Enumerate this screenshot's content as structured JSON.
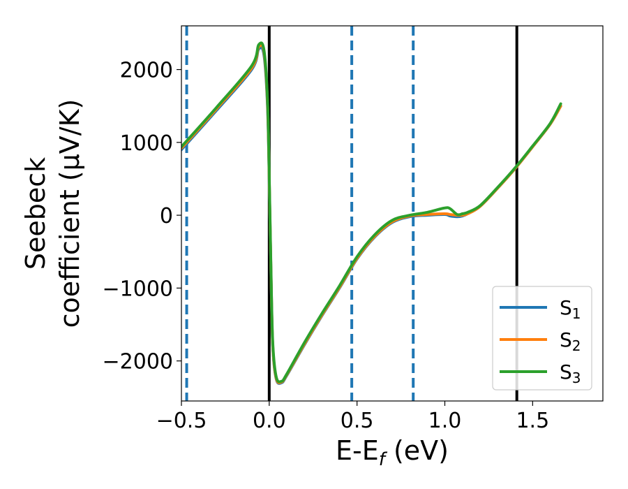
{
  "chart_data": {
    "type": "line",
    "xlabel": "E-E",
    "xlabel_sub": "f",
    "xlabel_unit": " (eV)",
    "ylabel_line1": "Seebeck",
    "ylabel_line2": "coefficient  (μV/K)",
    "xlim": [
      -0.5,
      1.9
    ],
    "ylim": [
      -2550,
      2600
    ],
    "xticks": [
      -0.5,
      0.0,
      0.5,
      1.0,
      1.5
    ],
    "xtick_labels": [
      "−0.5",
      "0.0",
      "0.5",
      "1.0",
      "1.5"
    ],
    "yticks": [
      2000,
      1000,
      0,
      -1000,
      -2000
    ],
    "ytick_labels": [
      "2000",
      "1000",
      "0",
      "−1000",
      "−2000"
    ],
    "vlines_solid": [
      0.0,
      1.41
    ],
    "vlines_dashed": [
      -0.47,
      0.47,
      0.82
    ],
    "vline_dashed_color": "#1f77b4",
    "vline_solid_color": "#000000",
    "grid": false,
    "legend_position": "lower-right",
    "series": [
      {
        "name": "S",
        "sub": "1",
        "color": "#1f77b4",
        "x": [
          -0.5,
          -0.3,
          -0.1,
          -0.06,
          -0.03,
          -0.01,
          0.0,
          0.01,
          0.02,
          0.04,
          0.07,
          0.1,
          0.2,
          0.3,
          0.4,
          0.5,
          0.6,
          0.7,
          0.8,
          0.9,
          1.0,
          1.03,
          1.07,
          1.1,
          1.13,
          1.2,
          1.3,
          1.4,
          1.5,
          1.6,
          1.66
        ],
        "y": [
          900,
          1440,
          2000,
          2280,
          2200,
          1500,
          500,
          -800,
          -1800,
          -2250,
          -2300,
          -2200,
          -1780,
          -1380,
          -1000,
          -600,
          -300,
          -100,
          -20,
          0,
          10,
          -10,
          -20,
          -10,
          20,
          120,
          370,
          640,
          940,
          1250,
          1500
        ]
      },
      {
        "name": "S",
        "sub": "2",
        "color": "#ff7f0e",
        "x": [
          -0.5,
          -0.3,
          -0.1,
          -0.06,
          -0.03,
          -0.01,
          0.0,
          0.01,
          0.02,
          0.04,
          0.07,
          0.1,
          0.2,
          0.3,
          0.4,
          0.5,
          0.6,
          0.7,
          0.8,
          0.9,
          1.0,
          1.03,
          1.07,
          1.1,
          1.13,
          1.2,
          1.3,
          1.4,
          1.5,
          1.6,
          1.66
        ],
        "y": [
          920,
          1460,
          2020,
          2310,
          2240,
          1550,
          520,
          -780,
          -1780,
          -2240,
          -2290,
          -2190,
          -1770,
          -1370,
          -990,
          -590,
          -290,
          -90,
          -10,
          10,
          20,
          10,
          0,
          0,
          20,
          120,
          370,
          640,
          940,
          1250,
          1500
        ]
      },
      {
        "name": "S",
        "sub": "3",
        "color": "#2ca02c",
        "x": [
          -0.5,
          -0.3,
          -0.1,
          -0.06,
          -0.03,
          -0.01,
          0.0,
          0.01,
          0.02,
          0.04,
          0.07,
          0.1,
          0.2,
          0.3,
          0.4,
          0.5,
          0.6,
          0.7,
          0.8,
          0.9,
          1.0,
          1.03,
          1.07,
          1.1,
          1.13,
          1.2,
          1.3,
          1.4,
          1.5,
          1.6,
          1.66
        ],
        "y": [
          940,
          1480,
          2050,
          2340,
          2270,
          1600,
          560,
          -740,
          -1740,
          -2220,
          -2280,
          -2180,
          -1750,
          -1350,
          -970,
          -570,
          -270,
          -70,
          0,
          40,
          100,
          90,
          10,
          20,
          40,
          130,
          380,
          650,
          950,
          1260,
          1530
        ]
      }
    ]
  }
}
